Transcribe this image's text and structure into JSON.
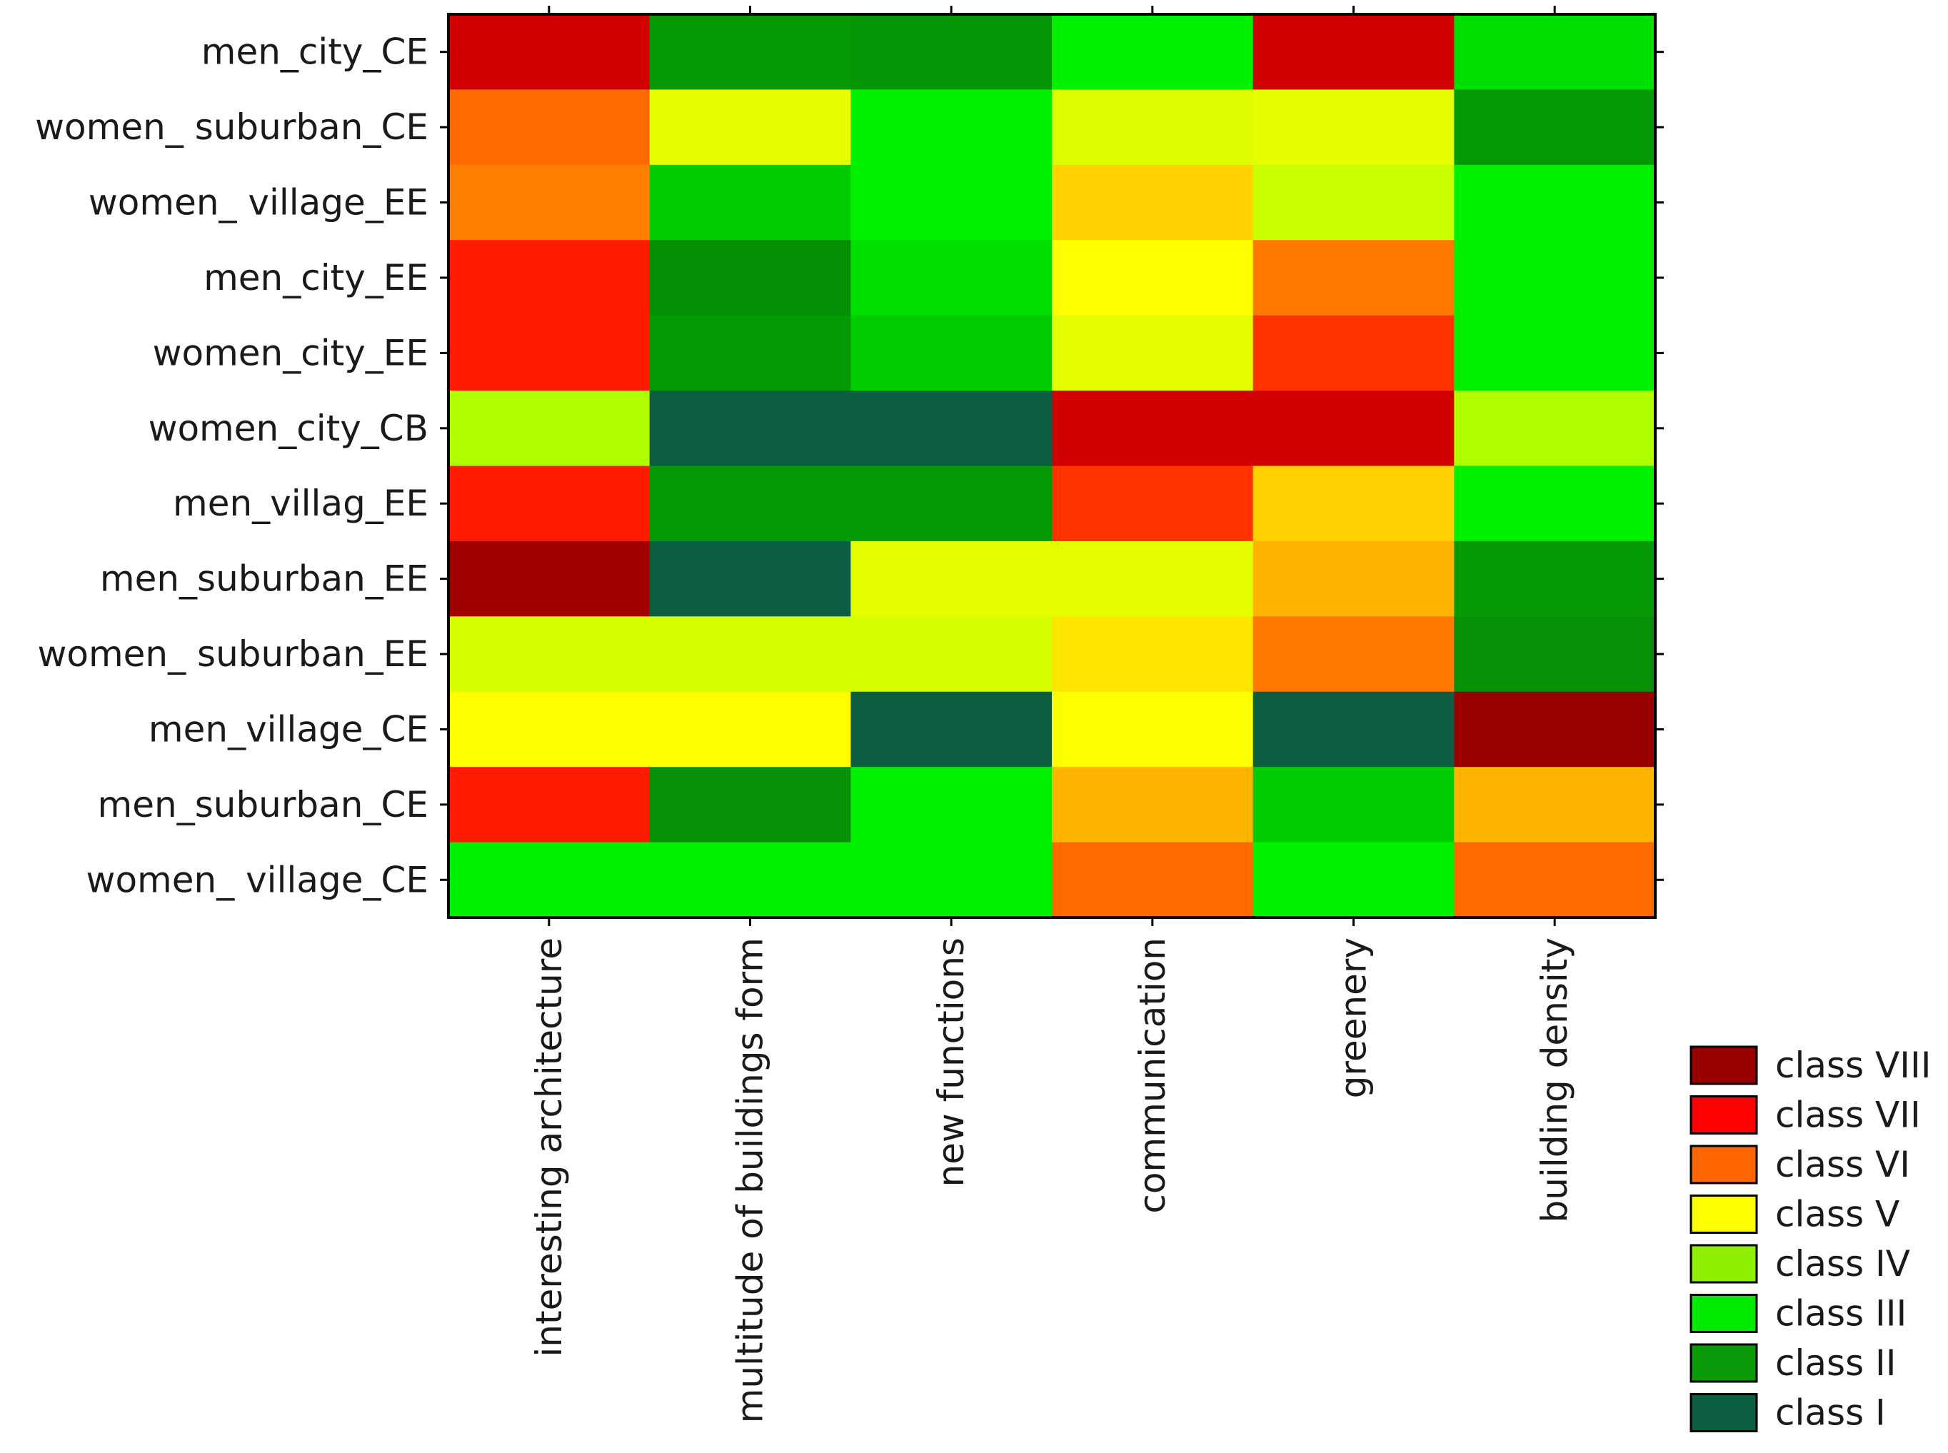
{
  "chart_data": {
    "type": "heatmap",
    "title": "",
    "xlabel": "",
    "ylabel": "",
    "rows": [
      "men_city_CE",
      "women_ suburban_CE",
      "women_ village_EE",
      "men_city_EE",
      "women_city_EE",
      "women_city_CB",
      "men_villag_EE",
      "men_suburban_EE",
      "women_ suburban_EE",
      "men_village_CE",
      "men_suburban_CE",
      "women_ village_CE"
    ],
    "columns": [
      "interesting architecture",
      "multitude of buildings form",
      "new functions",
      "communication",
      "greenery",
      "building density"
    ],
    "class_names": [
      "class I",
      "class II",
      "class III",
      "class IV",
      "class V",
      "class VI",
      "class VII",
      "class VIII"
    ],
    "class_colors": [
      "#0b5e40",
      "#0a9a0a",
      "#00ea00",
      "#8ef000",
      "#ffff00",
      "#ff6600",
      "#ff0000",
      "#990000"
    ],
    "legend": {
      "position": "bottom-right",
      "entries": [
        "class VIII",
        "class VII",
        "class VI",
        "class V",
        "class IV",
        "class III",
        "class II",
        "class I"
      ],
      "colors": [
        "#990000",
        "#ff0000",
        "#ff6600",
        "#ffff00",
        "#8ef000",
        "#00ea00",
        "#0a9a0a",
        "#0b5e40"
      ]
    },
    "cells": [
      {
        "class": [
          8,
          2,
          2,
          3,
          8,
          3
        ],
        "color": [
          "#d00000",
          "#059a05",
          "#059605",
          "#00f000",
          "#d00000",
          "#00e000"
        ]
      },
      {
        "class": [
          6,
          5,
          3,
          5,
          5,
          2
        ],
        "color": [
          "#ff6a00",
          "#e6ff00",
          "#00f000",
          "#dfff00",
          "#e6ff00",
          "#059a05"
        ]
      },
      {
        "class": [
          6,
          3,
          3,
          5,
          4,
          3
        ],
        "color": [
          "#ff8000",
          "#00cc00",
          "#00f000",
          "#ffd200",
          "#c9ff00",
          "#00f000"
        ]
      },
      {
        "class": [
          7,
          2,
          3,
          5,
          6,
          3
        ],
        "color": [
          "#ff1a00",
          "#049004",
          "#00e000",
          "#ffff00",
          "#ff7800",
          "#00f000"
        ]
      },
      {
        "class": [
          7,
          2,
          3,
          5,
          7,
          3
        ],
        "color": [
          "#ff1a00",
          "#059a05",
          "#00cc00",
          "#e6ff00",
          "#ff3200",
          "#00f000"
        ]
      },
      {
        "class": [
          4,
          1,
          1,
          8,
          8,
          4
        ],
        "color": [
          "#b0ff00",
          "#0b5e40",
          "#0b5e40",
          "#d00000",
          "#d00000",
          "#b0ff00"
        ]
      },
      {
        "class": [
          7,
          2,
          2,
          7,
          5,
          3
        ],
        "color": [
          "#ff1a00",
          "#059a05",
          "#059a05",
          "#ff3200",
          "#ffd200",
          "#00f000"
        ]
      },
      {
        "class": [
          8,
          1,
          5,
          5,
          6,
          2
        ],
        "color": [
          "#a00000",
          "#0b5e40",
          "#e6ff00",
          "#e6ff00",
          "#ffb400",
          "#059a05"
        ]
      },
      {
        "class": [
          4,
          4,
          4,
          5,
          6,
          2
        ],
        "color": [
          "#d6ff00",
          "#d6ff00",
          "#d6ff00",
          "#ffe600",
          "#ff7800",
          "#059005"
        ]
      },
      {
        "class": [
          5,
          5,
          1,
          5,
          1,
          8
        ],
        "color": [
          "#ffff00",
          "#ffff00",
          "#0b5e40",
          "#ffff00",
          "#0b5e40",
          "#990000"
        ]
      },
      {
        "class": [
          7,
          2,
          3,
          6,
          3,
          6
        ],
        "color": [
          "#ff1a00",
          "#059005",
          "#00f000",
          "#ffb400",
          "#00cc00",
          "#ffb400"
        ]
      },
      {
        "class": [
          3,
          3,
          3,
          6,
          3,
          6
        ],
        "color": [
          "#00f000",
          "#00f000",
          "#00f000",
          "#ff6a00",
          "#00f000",
          "#ff6a00"
        ]
      }
    ]
  }
}
